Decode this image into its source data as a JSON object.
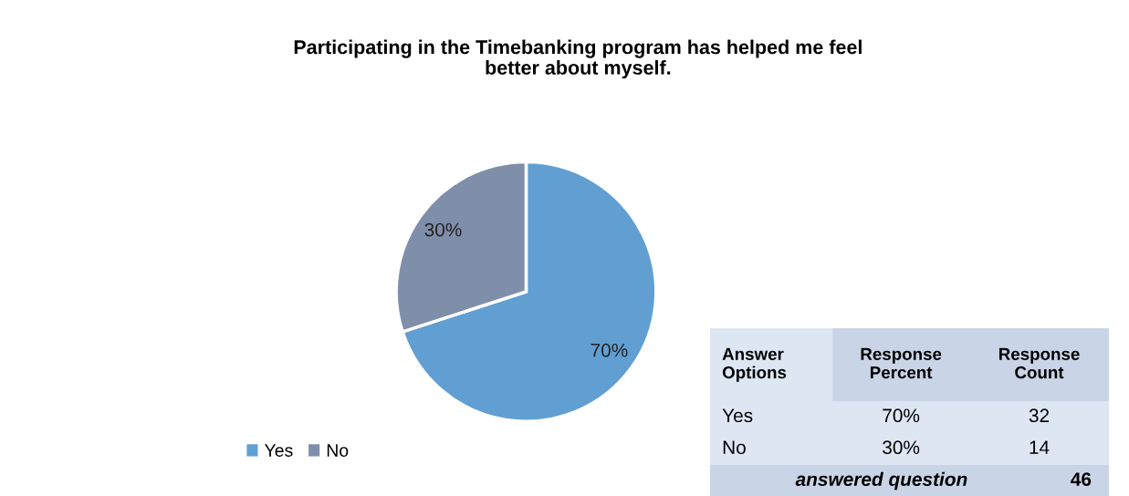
{
  "chart_data": [
    {
      "type": "pie",
      "title": "Participating in the Timebanking program has helped me feel\nbetter about myself.",
      "categories": [
        "Yes",
        "No"
      ],
      "values": [
        70,
        30
      ],
      "colors": [
        "#619fd3",
        "#7f8faa"
      ],
      "value_labels": [
        "70%",
        "30%"
      ],
      "legend": "bottom left"
    },
    {
      "type": "other",
      "annotations": [
        "Answer\nOptions",
        "Response\nPercent",
        "Response\nCount",
        "Yes",
        "70%",
        "32",
        "No",
        "30%",
        "14",
        "answered question",
        "46"
      ]
    }
  ]
}
